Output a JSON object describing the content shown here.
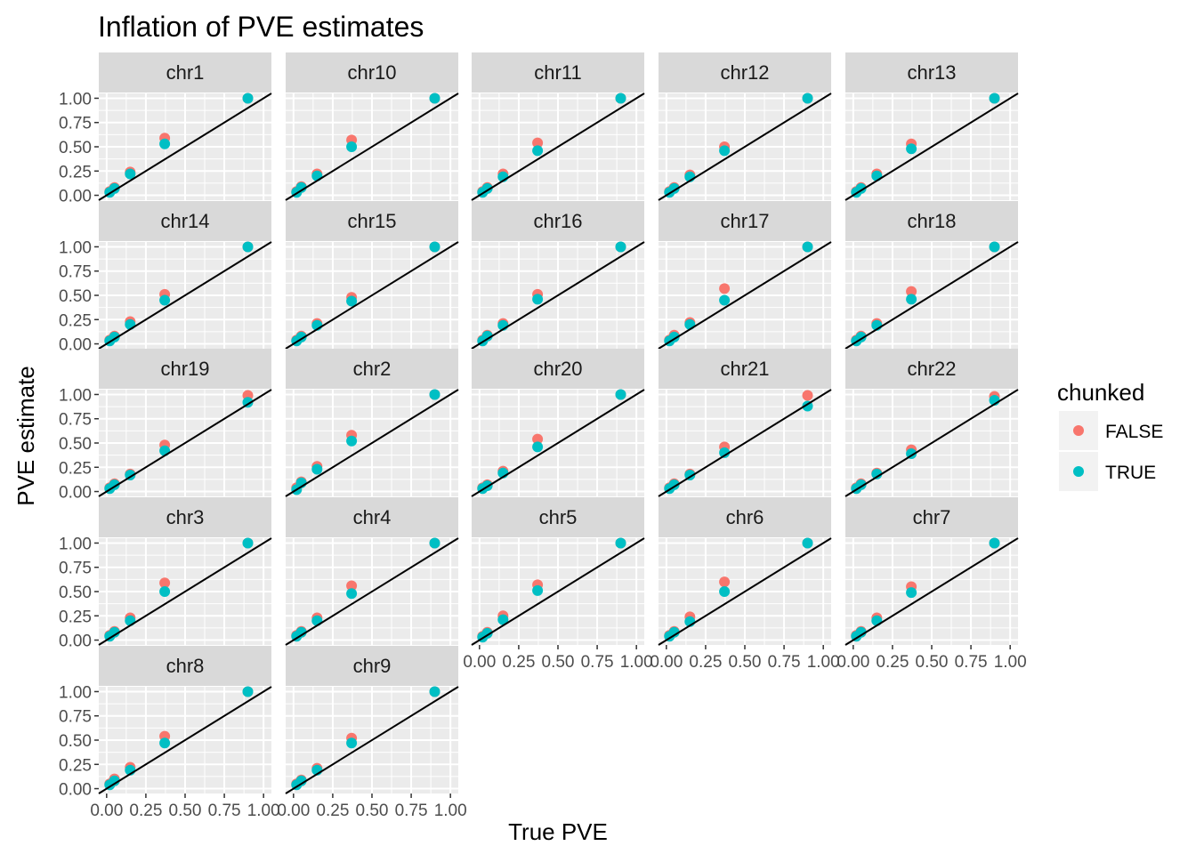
{
  "chart_data": {
    "type": "scatter",
    "title": "Inflation of PVE estimates",
    "xlabel": "True PVE",
    "ylabel": "PVE estimate",
    "xlim": [
      0,
      1
    ],
    "ylim": [
      0,
      1
    ],
    "x_ticks": [
      "0.00",
      "0.25",
      "0.50",
      "0.75",
      "1.00"
    ],
    "y_ticks": [
      "0.00",
      "0.25",
      "0.50",
      "0.75",
      "1.00"
    ],
    "reference_line": "y = x",
    "grid": true,
    "legend": {
      "title": "chunked",
      "position": "right",
      "entries": [
        {
          "label": "FALSE",
          "color": "#F8766D"
        },
        {
          "label": "TRUE",
          "color": "#00BFC4"
        }
      ]
    },
    "true_pve_levels": [
      0.02,
      0.05,
      0.15,
      0.37,
      0.9
    ],
    "panels": [
      {
        "label": "chr1",
        "FALSE": [
          0.04,
          0.08,
          0.24,
          0.59,
          1.0
        ],
        "TRUE": [
          0.03,
          0.07,
          0.22,
          0.53,
          1.0
        ]
      },
      {
        "label": "chr10",
        "FALSE": [
          0.04,
          0.09,
          0.22,
          0.57,
          1.0
        ],
        "TRUE": [
          0.03,
          0.08,
          0.2,
          0.5,
          1.0
        ]
      },
      {
        "label": "chr11",
        "FALSE": [
          0.04,
          0.08,
          0.22,
          0.54,
          1.0
        ],
        "TRUE": [
          0.03,
          0.07,
          0.19,
          0.46,
          1.0
        ]
      },
      {
        "label": "chr12",
        "FALSE": [
          0.04,
          0.08,
          0.21,
          0.5,
          1.0
        ],
        "TRUE": [
          0.03,
          0.07,
          0.19,
          0.46,
          1.0
        ]
      },
      {
        "label": "chr13",
        "FALSE": [
          0.04,
          0.08,
          0.22,
          0.53,
          1.0
        ],
        "TRUE": [
          0.03,
          0.07,
          0.2,
          0.48,
          1.0
        ]
      },
      {
        "label": "chr14",
        "FALSE": [
          0.04,
          0.08,
          0.23,
          0.51,
          1.0
        ],
        "TRUE": [
          0.03,
          0.07,
          0.2,
          0.45,
          1.0
        ]
      },
      {
        "label": "chr15",
        "FALSE": [
          0.04,
          0.08,
          0.21,
          0.48,
          1.0
        ],
        "TRUE": [
          0.03,
          0.07,
          0.19,
          0.44,
          1.0
        ]
      },
      {
        "label": "chr16",
        "FALSE": [
          0.04,
          0.09,
          0.21,
          0.51,
          1.0
        ],
        "TRUE": [
          0.03,
          0.08,
          0.19,
          0.46,
          1.0
        ]
      },
      {
        "label": "chr17",
        "FALSE": [
          0.04,
          0.09,
          0.22,
          0.57,
          1.0
        ],
        "TRUE": [
          0.03,
          0.07,
          0.2,
          0.45,
          1.0
        ]
      },
      {
        "label": "chr18",
        "FALSE": [
          0.04,
          0.08,
          0.21,
          0.54,
          1.0
        ],
        "TRUE": [
          0.03,
          0.07,
          0.19,
          0.46,
          1.0
        ]
      },
      {
        "label": "chr19",
        "FALSE": [
          0.04,
          0.08,
          0.18,
          0.48,
          0.99
        ],
        "TRUE": [
          0.03,
          0.07,
          0.17,
          0.42,
          0.92
        ]
      },
      {
        "label": "chr2",
        "FALSE": [
          0.04,
          0.1,
          0.26,
          0.58,
          1.0
        ],
        "TRUE": [
          0.02,
          0.09,
          0.23,
          0.52,
          1.0
        ]
      },
      {
        "label": "chr20",
        "FALSE": [
          0.04,
          0.07,
          0.21,
          0.54,
          1.0
        ],
        "TRUE": [
          0.03,
          0.06,
          0.19,
          0.46,
          1.0
        ]
      },
      {
        "label": "chr21",
        "FALSE": [
          0.04,
          0.08,
          0.18,
          0.46,
          0.99
        ],
        "TRUE": [
          0.03,
          0.07,
          0.17,
          0.4,
          0.88
        ]
      },
      {
        "label": "chr22",
        "FALSE": [
          0.04,
          0.08,
          0.19,
          0.43,
          0.98
        ],
        "TRUE": [
          0.03,
          0.07,
          0.18,
          0.39,
          0.94
        ]
      },
      {
        "label": "chr3",
        "FALSE": [
          0.05,
          0.09,
          0.23,
          0.59,
          1.0
        ],
        "TRUE": [
          0.04,
          0.08,
          0.2,
          0.5,
          1.0
        ]
      },
      {
        "label": "chr4",
        "FALSE": [
          0.05,
          0.09,
          0.23,
          0.56,
          1.0
        ],
        "TRUE": [
          0.04,
          0.08,
          0.2,
          0.48,
          1.0
        ]
      },
      {
        "label": "chr5",
        "FALSE": [
          0.04,
          0.08,
          0.25,
          0.57,
          1.0
        ],
        "TRUE": [
          0.03,
          0.07,
          0.21,
          0.51,
          1.0
        ]
      },
      {
        "label": "chr6",
        "FALSE": [
          0.05,
          0.09,
          0.24,
          0.6,
          1.0
        ],
        "TRUE": [
          0.04,
          0.08,
          0.19,
          0.5,
          1.0
        ]
      },
      {
        "label": "chr7",
        "FALSE": [
          0.05,
          0.09,
          0.23,
          0.55,
          1.0
        ],
        "TRUE": [
          0.04,
          0.08,
          0.2,
          0.49,
          1.0
        ]
      },
      {
        "label": "chr8",
        "FALSE": [
          0.05,
          0.1,
          0.22,
          0.54,
          1.0
        ],
        "TRUE": [
          0.04,
          0.08,
          0.19,
          0.47,
          1.0
        ]
      },
      {
        "label": "chr9",
        "FALSE": [
          0.05,
          0.09,
          0.21,
          0.52,
          1.0
        ],
        "TRUE": [
          0.04,
          0.08,
          0.19,
          0.47,
          1.0
        ]
      }
    ]
  }
}
